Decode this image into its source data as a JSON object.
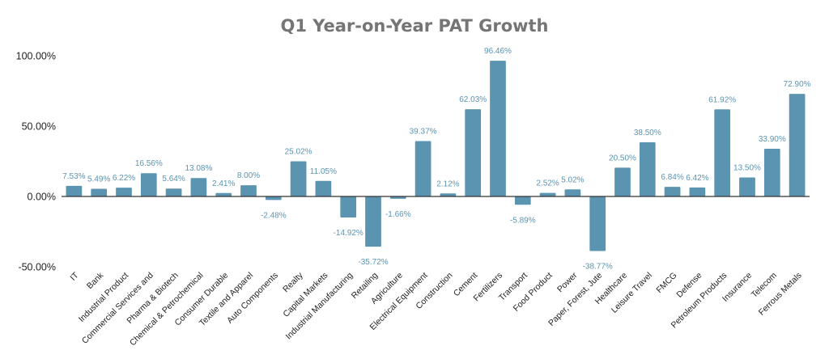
{
  "chart_data": {
    "type": "bar",
    "title": "Q1 Year-on-Year PAT Growth",
    "xlabel": "",
    "ylabel": "",
    "ylim": [
      -50,
      100
    ],
    "yticks": [
      -50,
      0,
      50,
      100
    ],
    "ytick_labels": [
      "-50.00%",
      "0.00%",
      "50.00%",
      "100.00%"
    ],
    "grid": false,
    "legend": "none",
    "colors": {
      "bar": "#5b94b1",
      "label": "#5b94b1",
      "axis": "#333333"
    },
    "categories": [
      "IT",
      "Bank",
      "Industrial Product",
      "Commercial Services and",
      "Pharma & Biotech",
      "Chemical & Petrochemical",
      "Consumer Durable",
      "Textile and Apparel",
      "Auto Components",
      "Realty",
      "Capital Markets",
      "Industrial Manufacturing",
      "Retailing",
      "Agriculture",
      "Electrical Equipment",
      "Construction",
      "Cement",
      "Fertilizers",
      "Transport",
      "Food Product",
      "Power",
      "Paper, Forest, Jute",
      "Healthcare",
      "Leisure Travel",
      "FMCG",
      "Defense",
      "Petroleum Products",
      "Insurance",
      "Telecom",
      "Ferrous Metals"
    ],
    "values": [
      7.53,
      5.49,
      6.22,
      16.56,
      5.64,
      13.08,
      2.41,
      8.0,
      -2.48,
      25.02,
      11.05,
      -14.92,
      -35.72,
      -1.66,
      39.37,
      2.12,
      62.03,
      96.46,
      -5.89,
      2.52,
      5.02,
      -38.77,
      20.5,
      38.5,
      6.84,
      6.42,
      61.92,
      13.5,
      33.9,
      72.9
    ],
    "data_labels": [
      "7.53%",
      "5.49%",
      "6.22%",
      "16.56%",
      "5.64%",
      "13.08%",
      "2.41%",
      "8.00%",
      "-2.48%",
      "25.02%",
      "11.05%",
      "-14.92%",
      "-35.72%",
      "-1.66%",
      "39.37%",
      "2.12%",
      "62.03%",
      "96.46%",
      "-5.89%",
      "2.52%",
      "5.02%",
      "-38.77%",
      "20.50%",
      "38.50%",
      "6.84%",
      "6.42%",
      "61.92%",
      "13.50%",
      "33.90%",
      "72.90%"
    ]
  }
}
